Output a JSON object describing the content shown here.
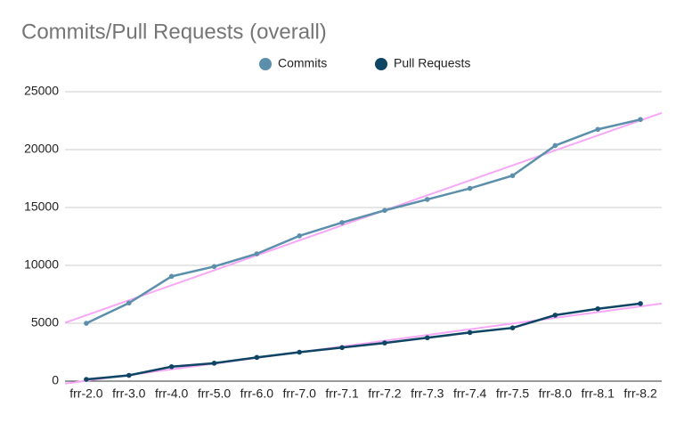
{
  "chart_data": {
    "type": "line",
    "title": "Commits/Pull Requests (overall)",
    "categories": [
      "frr-2.0",
      "frr-3.0",
      "frr-4.0",
      "frr-5.0",
      "frr-6.0",
      "frr-7.0",
      "frr-7.1",
      "frr-7.2",
      "frr-7.3",
      "frr-7.4",
      "frr-7.5",
      "frr-8.0",
      "frr-8.1",
      "frr-8.2"
    ],
    "series": [
      {
        "name": "Commits",
        "color": "#5b8fab",
        "values": [
          5000,
          6750,
          9050,
          9900,
          11000,
          12550,
          13700,
          14750,
          15700,
          16650,
          17750,
          20350,
          21750,
          22600
        ]
      },
      {
        "name": "Pull Requests",
        "color": "#0e4565",
        "values": [
          150,
          500,
          1250,
          1550,
          2050,
          2500,
          2900,
          3300,
          3750,
          4200,
          4600,
          5700,
          6250,
          6700
        ]
      }
    ],
    "ylim": [
      0,
      25000
    ],
    "yticks": [
      0,
      5000,
      10000,
      15000,
      20000,
      25000
    ],
    "grid": true,
    "trendline": true,
    "trendline_color": "#f7a8f7",
    "legend": "top"
  }
}
